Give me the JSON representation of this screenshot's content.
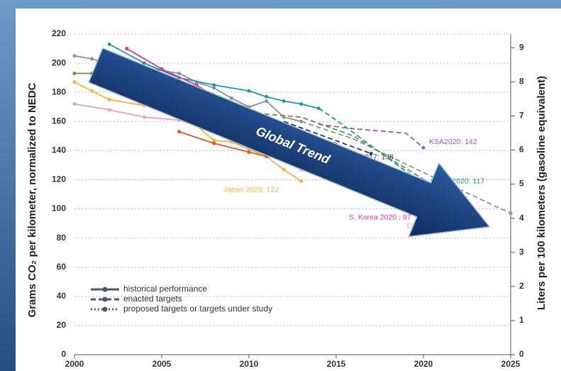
{
  "chart_data": {
    "type": "line",
    "y_label": "Grams CO₂ per kilometer, normalized to NEDC",
    "y2_label": "Liters per 100 kilometers (gasoline equivalent)",
    "annotation": "Global Trend",
    "xlim": [
      2000,
      2025
    ],
    "xticks": [
      2000,
      2005,
      2010,
      2015,
      2020,
      2025
    ],
    "ylim": [
      0,
      220
    ],
    "yticks": [
      0,
      20,
      40,
      60,
      80,
      100,
      120,
      140,
      160,
      180,
      200,
      220
    ],
    "y2lim": [
      0,
      9.4
    ],
    "y2ticks": [
      0,
      1,
      2,
      3,
      4,
      5,
      6,
      7,
      8,
      9
    ],
    "grid": true,
    "legend": [
      {
        "label": "historical performance",
        "style": "solid"
      },
      {
        "label": "enacted targets",
        "style": "dashed"
      },
      {
        "label": "proposed targets or targets under study",
        "style": "dotted"
      }
    ],
    "series": [
      {
        "color": "#8c8fa3",
        "style": "solid",
        "x": [
          2000,
          2001,
          2002,
          2004,
          2006,
          2007,
          2008,
          2009,
          2010,
          2011,
          2012,
          2013
        ],
        "values": [
          205,
          203,
          199,
          197,
          193,
          187,
          183,
          176,
          170,
          174,
          163,
          160
        ]
      },
      {
        "color": "#8c8fa3",
        "style": "dashed",
        "x": [
          2013,
          2016,
          2020,
          2025
        ],
        "values": [
          160,
          148,
          125,
          97
        ]
      },
      {
        "color": "#1a9aa0",
        "style": "solid",
        "x": [
          2002,
          2004,
          2006,
          2008,
          2010,
          2011,
          2012,
          2013,
          2014
        ],
        "values": [
          213,
          200,
          190,
          185,
          181,
          177,
          174,
          172,
          169
        ]
      },
      {
        "color": "#1a9aa0",
        "style": "dashed",
        "x": [
          2014,
          2015,
          2020
        ],
        "values": [
          169,
          161,
          117
        ],
        "label": "China 2020: 117"
      },
      {
        "color": "#e8a0b8",
        "style": "solid",
        "x": [
          2000,
          2002,
          2004,
          2006,
          2008,
          2010,
          2012,
          2013
        ],
        "values": [
          172,
          168,
          163,
          161,
          153,
          145,
          133,
          127
        ]
      },
      {
        "color": "#e8a0b8",
        "style": "dashed",
        "x": [
          2013,
          2021
        ],
        "values": [
          127,
          95
        ],
        "label": "EU 2021: 95"
      },
      {
        "color": "#f5b335",
        "style": "solid",
        "x": [
          2000,
          2001,
          2002,
          2004,
          2005,
          2006,
          2008,
          2009,
          2010,
          2011,
          2012,
          2013
        ],
        "values": [
          187,
          181,
          175,
          171,
          170,
          167,
          147,
          146,
          141,
          136,
          127,
          119
        ],
        "label": "Japan 2020: 122"
      },
      {
        "color": "#d63c8c",
        "style": "solid",
        "x": [
          2003,
          2005,
          2007,
          2009,
          2011
        ],
        "values": [
          210,
          196,
          185,
          170,
          160
        ]
      },
      {
        "color": "#d63c8c",
        "style": "dashed",
        "x": [
          2011,
          2015,
          2020
        ],
        "values": [
          160,
          145,
          97
        ],
        "label": "S. Korea 2020 : 97"
      },
      {
        "color": "#9b59b6",
        "style": "dashed",
        "x": [
          2014,
          2016,
          2019,
          2020
        ],
        "values": [
          158,
          155,
          152,
          142
        ],
        "label": "KSA2020: 142"
      },
      {
        "color": "#2a3a60",
        "style": "dashed",
        "x": [
          2012,
          2017
        ],
        "values": [
          160,
          138
        ],
        "label": "Brazil 2017: 138"
      },
      {
        "color": "#5a9a3a",
        "style": "solid",
        "x": [
          2000,
          2001,
          2002,
          2004,
          2006,
          2008,
          2010
        ],
        "values": [
          193,
          193,
          190,
          184,
          178,
          172,
          166
        ]
      },
      {
        "color": "#5a9a3a",
        "style": "dashed",
        "x": [
          2010,
          2013,
          2016,
          2021
        ],
        "values": [
          166,
          163,
          150,
          113
        ]
      },
      {
        "color": "#e8532a",
        "style": "solid",
        "x": [
          2006,
          2008,
          2010,
          2011,
          2012
        ],
        "values": [
          153,
          145,
          139,
          136,
          136
        ]
      }
    ]
  }
}
